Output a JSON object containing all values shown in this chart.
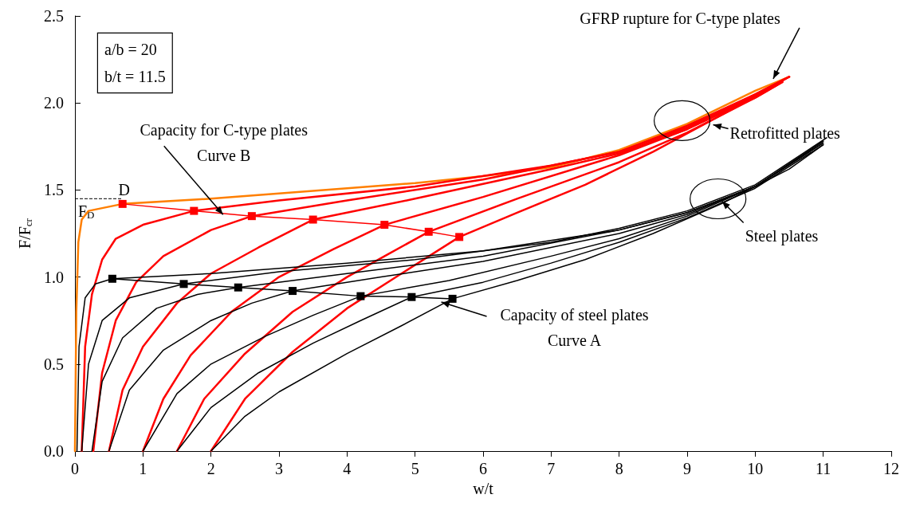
{
  "chart_data": {
    "type": "line",
    "xlabel": "w/t",
    "ylabel": "F/F$_{cr}$",
    "xlim": [
      0,
      12
    ],
    "ylim": [
      0,
      2.5
    ],
    "xticks": [
      0,
      1,
      2,
      3,
      4,
      5,
      6,
      7,
      8,
      9,
      10,
      11,
      12
    ],
    "yticks": [
      {
        "value": 0,
        "label": "0.0"
      },
      {
        "value": 0.5,
        "label": "0.5"
      },
      {
        "value": 1,
        "label": "1.0"
      },
      {
        "value": 1.5,
        "label": "1.5"
      },
      {
        "value": 2,
        "label": "2.0"
      },
      {
        "value": 2.5,
        "label": "2.5"
      }
    ],
    "grid": false,
    "series": [
      {
        "color": "#ff7f00",
        "x": [
          0,
          0.02,
          0.05,
          0.1,
          0.2,
          0.7,
          2,
          3,
          4,
          5,
          6,
          7,
          8,
          9,
          10,
          10.5
        ],
        "values": [
          0,
          0.8,
          1.2,
          1.33,
          1.38,
          1.42,
          1.45,
          1.48,
          1.51,
          1.54,
          1.58,
          1.63,
          1.73,
          1.88,
          2.07,
          2.15
        ]
      },
      {
        "color": "#ff0000",
        "marker": "square",
        "x": [
          0.7,
          1.75,
          2.6,
          3.5,
          4.55,
          5.2,
          5.65
        ],
        "values": [
          1.42,
          1.38,
          1.35,
          1.33,
          1.3,
          1.26,
          1.23
        ]
      },
      {
        "color": "#ff0000",
        "x": [
          0.1,
          0.15,
          0.25,
          0.4,
          0.6,
          1,
          1.75,
          3,
          5,
          7,
          8,
          9,
          10,
          10.5
        ],
        "values": [
          0,
          0.6,
          0.9,
          1.1,
          1.22,
          1.3,
          1.38,
          1.44,
          1.52,
          1.64,
          1.72,
          1.87,
          2.05,
          2.15
        ]
      },
      {
        "color": "#ff0000",
        "x": [
          0.27,
          0.4,
          0.6,
          0.9,
          1.3,
          2,
          2.6,
          4,
          6,
          8,
          9,
          10,
          10.5
        ],
        "values": [
          0,
          0.45,
          0.75,
          0.97,
          1.12,
          1.27,
          1.35,
          1.44,
          1.56,
          1.72,
          1.86,
          2.05,
          2.15
        ]
      },
      {
        "color": "#ff0000",
        "x": [
          0.5,
          0.7,
          1,
          1.5,
          2,
          2.7,
          3.5,
          5,
          7,
          8,
          9,
          10,
          10.45
        ],
        "values": [
          0,
          0.35,
          0.6,
          0.85,
          1.02,
          1.17,
          1.33,
          1.45,
          1.62,
          1.71,
          1.85,
          2.04,
          2.14
        ]
      },
      {
        "color": "#ff0000",
        "x": [
          1,
          1.3,
          1.7,
          2.3,
          3,
          3.8,
          4.55,
          6,
          8,
          9,
          10,
          10.4
        ],
        "values": [
          0,
          0.3,
          0.55,
          0.8,
          1,
          1.16,
          1.3,
          1.46,
          1.7,
          1.85,
          2.03,
          2.12
        ]
      },
      {
        "color": "#ff0000",
        "x": [
          1.5,
          1.9,
          2.5,
          3.2,
          4,
          4.6,
          5.2,
          6.5,
          8,
          9,
          10,
          10.4
        ],
        "values": [
          0,
          0.3,
          0.56,
          0.8,
          1,
          1.13,
          1.26,
          1.45,
          1.66,
          1.83,
          2.03,
          2.12
        ]
      },
      {
        "color": "#ff0000",
        "x": [
          2,
          2.5,
          3.2,
          4,
          4.8,
          5.65,
          6.5,
          7.5,
          8.5,
          9.5,
          10.3
        ],
        "values": [
          0,
          0.3,
          0.57,
          0.82,
          1.02,
          1.23,
          1.37,
          1.53,
          1.72,
          1.93,
          2.1
        ]
      },
      {
        "color": "#000000",
        "marker": "square",
        "x": [
          0.55,
          1.6,
          2.4,
          3.2,
          4.2,
          4.95,
          5.55
        ],
        "values": [
          0.99,
          0.96,
          0.94,
          0.92,
          0.89,
          0.885,
          0.875
        ]
      },
      {
        "color": "#000000",
        "x": [
          0.03,
          0.06,
          0.15,
          0.3,
          0.55,
          2,
          4,
          6,
          8,
          9,
          10,
          11
        ],
        "values": [
          0,
          0.6,
          0.88,
          0.96,
          0.99,
          1.02,
          1.08,
          1.15,
          1.27,
          1.37,
          1.52,
          1.78
        ]
      },
      {
        "color": "#000000",
        "x": [
          0.1,
          0.2,
          0.4,
          0.8,
          1.6,
          3,
          5,
          7,
          8,
          9,
          10,
          11.05
        ],
        "values": [
          0,
          0.5,
          0.75,
          0.88,
          0.96,
          1.03,
          1.1,
          1.2,
          1.28,
          1.38,
          1.53,
          1.8
        ]
      },
      {
        "color": "#000000",
        "x": [
          0.25,
          0.4,
          0.7,
          1.2,
          1.8,
          2.4,
          4,
          6,
          8,
          9,
          10,
          11
        ],
        "values": [
          0,
          0.4,
          0.65,
          0.82,
          0.9,
          0.94,
          1.02,
          1.12,
          1.27,
          1.37,
          1.52,
          1.78
        ]
      },
      {
        "color": "#000000",
        "x": [
          0.5,
          0.8,
          1.3,
          2,
          2.6,
          3.2,
          4.5,
          6,
          8,
          9,
          10,
          11
        ],
        "values": [
          0,
          0.35,
          0.58,
          0.75,
          0.85,
          0.92,
          1,
          1.09,
          1.25,
          1.36,
          1.52,
          1.77
        ]
      },
      {
        "color": "#000000",
        "x": [
          1,
          1.5,
          2,
          2.8,
          3.5,
          4.2,
          5.5,
          7,
          8,
          9,
          10,
          11
        ],
        "values": [
          0,
          0.33,
          0.5,
          0.66,
          0.78,
          0.89,
          0.98,
          1.12,
          1.22,
          1.35,
          1.52,
          1.77
        ]
      },
      {
        "color": "#000000",
        "x": [
          1.5,
          2,
          2.7,
          3.5,
          4.2,
          4.95,
          6,
          7,
          8,
          9,
          10,
          11
        ],
        "values": [
          0,
          0.25,
          0.45,
          0.62,
          0.75,
          0.885,
          0.97,
          1.08,
          1.2,
          1.34,
          1.51,
          1.76
        ]
      },
      {
        "color": "#000000",
        "x": [
          2,
          2.5,
          3,
          4,
          4.8,
          5.55,
          6.5,
          7.5,
          8.5,
          9.5,
          10.5,
          11
        ],
        "values": [
          0,
          0.2,
          0.34,
          0.56,
          0.72,
          0.875,
          0.98,
          1.1,
          1.25,
          1.42,
          1.62,
          1.76
        ]
      }
    ],
    "ref_lines": [
      {
        "axis": "y",
        "value": 1.45,
        "label": "F$_{D}$",
        "line_style": "dashed",
        "color": "#000000"
      }
    ],
    "annotations": [
      {
        "text": "GFRP rupture for C-type plates",
        "x": 10.3,
        "y": 2.13
      },
      {
        "text": "Retrofitted plates",
        "x": 9.37,
        "y": 1.88
      },
      {
        "text": "Steel plates",
        "x": 9.5,
        "y": 1.44
      },
      {
        "text": "Capacity for C-type plates\nCurve B",
        "x": 2.2,
        "y": 1.35
      },
      {
        "text": "Capacity of steel plates\nCurve A",
        "x": 5.35,
        "y": 0.87
      },
      {
        "text": "D",
        "x": 0.7,
        "y": 1.42
      },
      "a/b = 20\nb/t = 11.5"
    ]
  }
}
